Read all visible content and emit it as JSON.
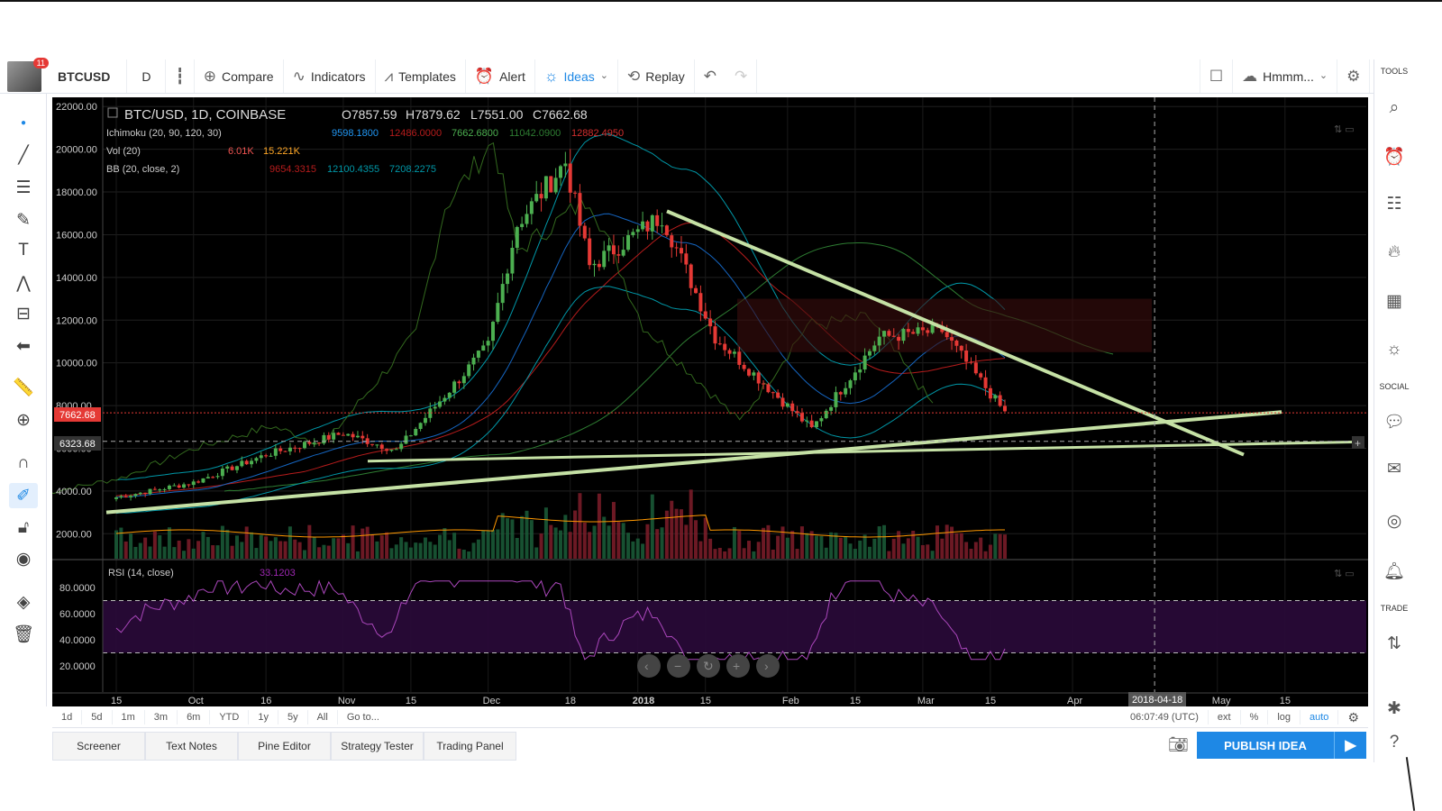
{
  "toolbar": {
    "notifications": "11",
    "symbol": "BTCUSD",
    "interval": "D",
    "compare": "Compare",
    "indicators": "Indicators",
    "templates": "Templates",
    "alert": "Alert",
    "ideas": "Ideas",
    "replay": "Replay",
    "layout_name": "Hmmm..."
  },
  "legend": {
    "title": "BTC/USD, 1D, COINBASE",
    "open": "O7857.59",
    "high": "H7879.62",
    "low": "L7551.00",
    "close": "C7662.68",
    "ichimoku": {
      "label": "Ichimoku (20, 90, 120, 30)",
      "v1": "9598.1800",
      "v2": "12486.0000",
      "v3": "7662.6800",
      "v4": "11042.0900",
      "v5": "12882.4950"
    },
    "vol": {
      "label": "Vol (20)",
      "v1": "6.01K",
      "v2": "15.221K"
    },
    "bb": {
      "label": "BB (20, close, 2)",
      "v1": "9654.3315",
      "v2": "12100.4355",
      "v3": "7208.2275"
    },
    "rsi": {
      "label": "RSI (14, close)",
      "v1": "33.1203"
    }
  },
  "price_axis": {
    "ticks": [
      "22000.00",
      "20000.00",
      "18000.00",
      "16000.00",
      "14000.00",
      "12000.00",
      "10000.00",
      "8000.00",
      "6000.00",
      "4000.00",
      "2000.00"
    ],
    "current_price": "7662.68",
    "cursor_price": "6323.68"
  },
  "rsi_axis": {
    "ticks": [
      "80.0000",
      "60.0000",
      "40.0000",
      "20.0000"
    ]
  },
  "time_axis": {
    "ticks": [
      "15",
      "Oct",
      "16",
      "Nov",
      "15",
      "Dec",
      "18",
      "2018",
      "15",
      "Feb",
      "15",
      "Mar",
      "15",
      "Apr",
      "May",
      "15"
    ],
    "cursor_date": "2018-04-18"
  },
  "chart_data": {
    "type": "candlestick",
    "symbol": "BTC/USD, 1D, COINBASE",
    "ohlc_last": {
      "open": 7857.59,
      "high": 7879.62,
      "low": 7551.0,
      "close": 7662.68
    },
    "ylim": [
      1000,
      22600
    ],
    "x_ticks": [
      "15",
      "Oct",
      "16",
      "Nov",
      "15",
      "Dec",
      "18",
      "2018",
      "15",
      "Feb",
      "15",
      "Mar",
      "15",
      "Apr",
      "May",
      "15"
    ],
    "close_path": [
      {
        "date": "2017-09-15",
        "close": 3700
      },
      {
        "date": "2017-10-01",
        "close": 4400
      },
      {
        "date": "2017-10-16",
        "close": 5700
      },
      {
        "date": "2017-11-01",
        "close": 6700
      },
      {
        "date": "2017-11-12",
        "close": 5900
      },
      {
        "date": "2017-12-01",
        "close": 10800
      },
      {
        "date": "2017-12-07",
        "close": 16500
      },
      {
        "date": "2017-12-17",
        "close": 19400
      },
      {
        "date": "2017-12-22",
        "close": 14500
      },
      {
        "date": "2018-01-06",
        "close": 16900
      },
      {
        "date": "2018-01-17",
        "close": 11200
      },
      {
        "date": "2018-02-06",
        "close": 6900
      },
      {
        "date": "2018-02-20",
        "close": 11200
      },
      {
        "date": "2018-03-05",
        "close": 11500
      },
      {
        "date": "2018-03-18",
        "close": 7662.68
      }
    ],
    "rsi_range": [
      0,
      100
    ],
    "rsi_levels": [
      70,
      30
    ],
    "rsi_last": 33.1203
  },
  "range_bar": {
    "items": [
      "1d",
      "5d",
      "1m",
      "3m",
      "6m",
      "YTD",
      "1y",
      "5y",
      "All",
      "Go to..."
    ],
    "time": "06:07:49 (UTC)",
    "right": [
      "ext",
      "%",
      "log",
      "auto"
    ]
  },
  "right_sidebar": {
    "tools": "TOOLS",
    "social": "SOCIAL",
    "trade": "TRADE"
  },
  "bottom_tabs": [
    "Screener",
    "Text Notes",
    "Pine Editor",
    "Strategy Tester",
    "Trading Panel"
  ],
  "publish": "PUBLISH IDEA",
  "colors": {
    "accent": "#1e88e5",
    "candle_up": "#4caf50",
    "candle_down": "#e53935",
    "trendline": "#c5e1a5",
    "rsi": "#ab47bc"
  }
}
